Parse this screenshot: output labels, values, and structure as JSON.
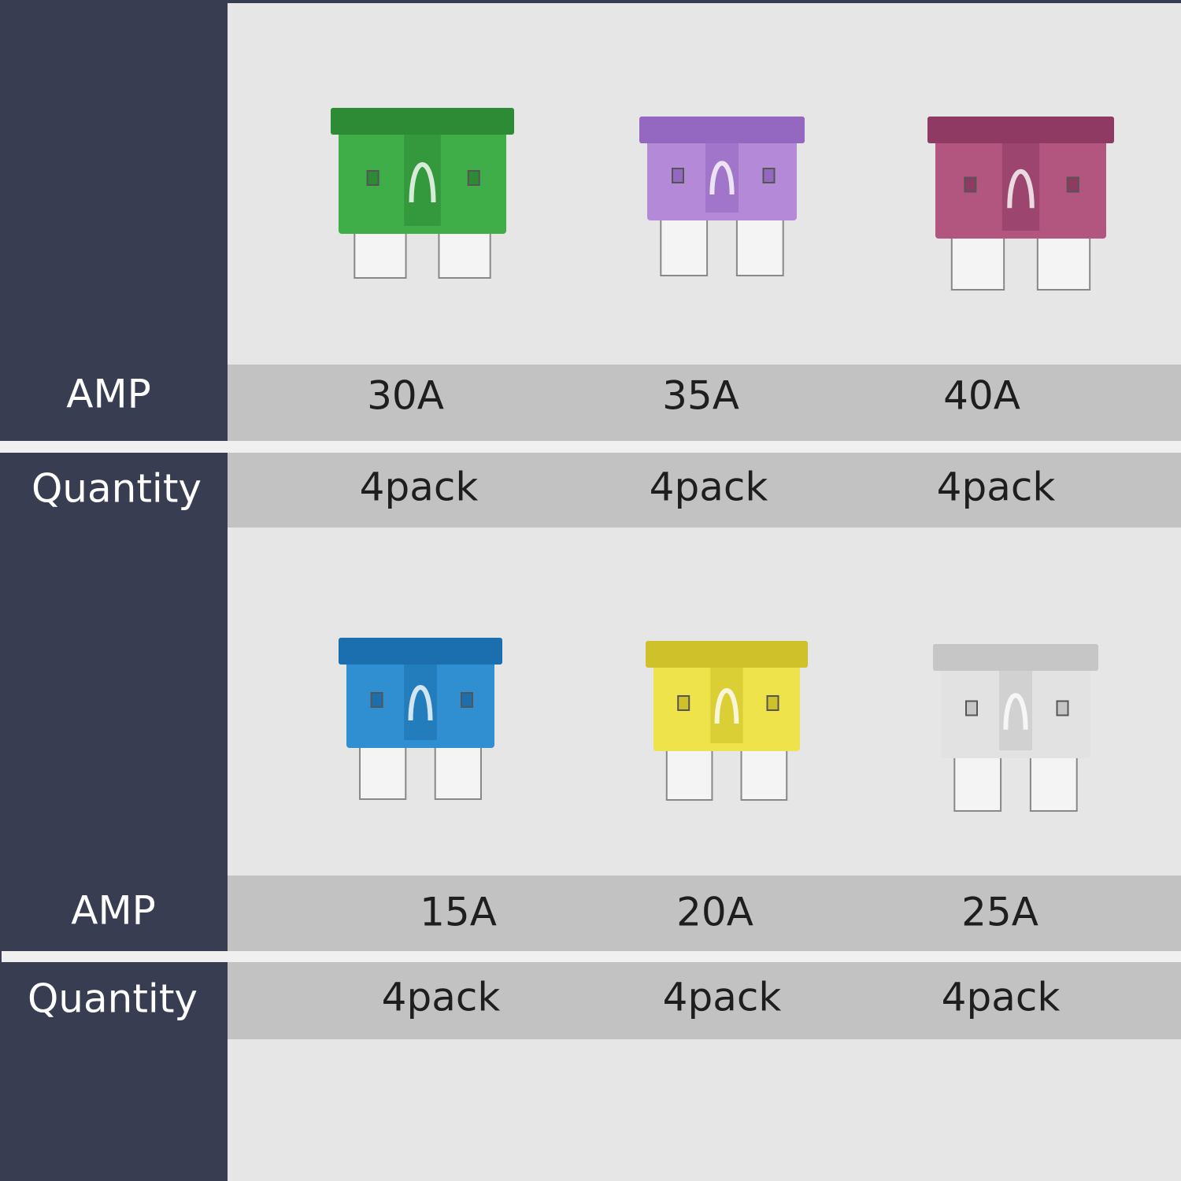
{
  "groups": [
    {
      "row_labels": {
        "amp": "AMP",
        "quantity": "Quantity"
      },
      "items": [
        {
          "amp": "30A",
          "quantity": "4pack"
        },
        {
          "amp": "35A",
          "quantity": "4pack"
        },
        {
          "amp": "40A",
          "quantity": "4pack"
        }
      ]
    },
    {
      "row_labels": {
        "amp": "AMP",
        "quantity": "Quantity"
      },
      "items": [
        {
          "amp": "15A",
          "quantity": "4pack"
        },
        {
          "amp": "20A",
          "quantity": "4pack"
        },
        {
          "amp": "25A",
          "quantity": "4pack"
        }
      ]
    }
  ]
}
